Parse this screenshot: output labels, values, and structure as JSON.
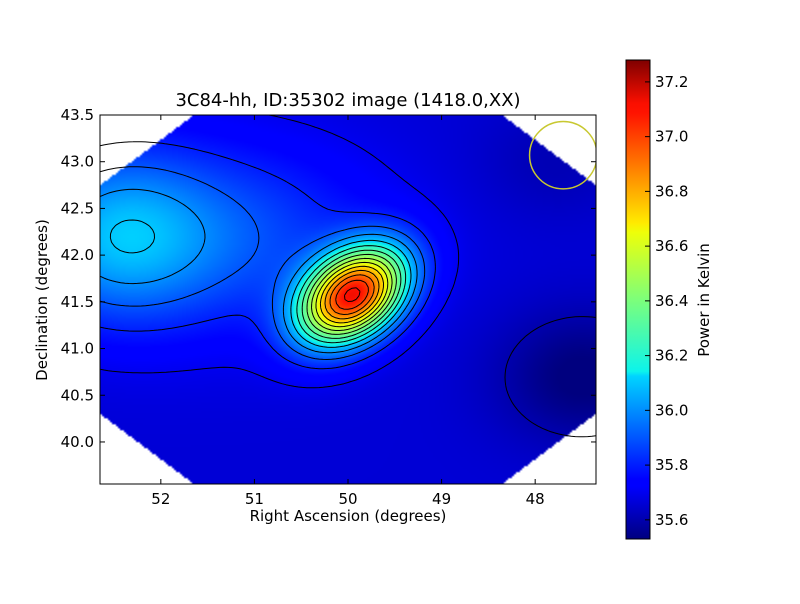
{
  "chart_data": {
    "type": "heatmap",
    "title": "3C84-hh, ID:35302 image (1418.0,XX)",
    "xlabel": "Right Ascension (degrees)",
    "ylabel": "Declination (degrees)",
    "colorbar_label": "Power in Kelvin",
    "x_range": [
      52.65,
      47.35
    ],
    "y_range": [
      39.55,
      43.5
    ],
    "x_ticks": [
      {
        "value": 52,
        "label": "52"
      },
      {
        "value": 51,
        "label": "51"
      },
      {
        "value": 50,
        "label": "50"
      },
      {
        "value": 49,
        "label": "49"
      },
      {
        "value": 48,
        "label": "48"
      }
    ],
    "y_ticks": [
      {
        "value": 40.0,
        "label": "40.0"
      },
      {
        "value": 40.5,
        "label": "40.5"
      },
      {
        "value": 41.0,
        "label": "41.0"
      },
      {
        "value": 41.5,
        "label": "41.5"
      },
      {
        "value": 42.0,
        "label": "42.0"
      },
      {
        "value": 42.5,
        "label": "42.5"
      },
      {
        "value": 43.0,
        "label": "43.0"
      },
      {
        "value": 43.5,
        "label": "43.5"
      }
    ],
    "colorbar_range": [
      35.53,
      37.28
    ],
    "colorbar_ticks": [
      {
        "value": 35.6,
        "label": "35.6"
      },
      {
        "value": 35.8,
        "label": "35.8"
      },
      {
        "value": 36.0,
        "label": "36.0"
      },
      {
        "value": 36.2,
        "label": "36.2"
      },
      {
        "value": 36.4,
        "label": "36.4"
      },
      {
        "value": 36.6,
        "label": "36.6"
      },
      {
        "value": 36.8,
        "label": "36.8"
      },
      {
        "value": 37.0,
        "label": "37.0"
      },
      {
        "value": 37.2,
        "label": "37.2"
      }
    ],
    "colormap": "jet",
    "peak": {
      "ra": 49.95,
      "dec": 41.57,
      "value": 37.25
    },
    "contour_spacing": 0.1,
    "beam_circle": {
      "ra": 47.7,
      "dec": 43.07,
      "radius_deg": 0.36,
      "color": "#c8c830"
    },
    "grid": false
  }
}
